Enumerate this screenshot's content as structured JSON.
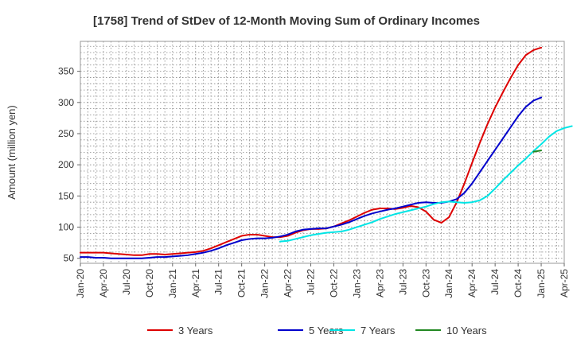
{
  "chart_data": {
    "type": "line",
    "title": "[1758]  Trend of StDev of 12-Month Moving Sum of Ordinary Incomes",
    "xlabel": "",
    "ylabel": "Amount (million yen)",
    "ylim": [
      42,
      398
    ],
    "yticks": [
      50,
      100,
      150,
      200,
      250,
      300,
      350
    ],
    "x_start": "Jan-20",
    "x_months": 63,
    "xticks": [
      {
        "label": "Jan-20",
        "m": 0
      },
      {
        "label": "Apr-20",
        "m": 3
      },
      {
        "label": "Jul-20",
        "m": 6
      },
      {
        "label": "Oct-20",
        "m": 9
      },
      {
        "label": "Jan-21",
        "m": 12
      },
      {
        "label": "Apr-21",
        "m": 15
      },
      {
        "label": "Jul-21",
        "m": 18
      },
      {
        "label": "Oct-21",
        "m": 21
      },
      {
        "label": "Jan-22",
        "m": 24
      },
      {
        "label": "Apr-22",
        "m": 27
      },
      {
        "label": "Jul-22",
        "m": 30
      },
      {
        "label": "Oct-22",
        "m": 33
      },
      {
        "label": "Jan-23",
        "m": 36
      },
      {
        "label": "Apr-23",
        "m": 39
      },
      {
        "label": "Jul-23",
        "m": 42
      },
      {
        "label": "Oct-23",
        "m": 45
      },
      {
        "label": "Jan-24",
        "m": 48
      },
      {
        "label": "Apr-24",
        "m": 51
      },
      {
        "label": "Jul-24",
        "m": 54
      },
      {
        "label": "Oct-24",
        "m": 57
      },
      {
        "label": "Jan-25",
        "m": 60
      },
      {
        "label": "Apr-25",
        "m": 63
      }
    ],
    "series": [
      {
        "name": "3 Years",
        "color": "#dd0000",
        "start": 0,
        "values": [
          59,
          59,
          59,
          59,
          58,
          57,
          56,
          55,
          55,
          57,
          57,
          56,
          57,
          58,
          59,
          60,
          62,
          66,
          71,
          76,
          81,
          86,
          88,
          88,
          86,
          84,
          84,
          86,
          91,
          95,
          97,
          97,
          98,
          101,
          106,
          111,
          117,
          123,
          128,
          130,
          130,
          129,
          131,
          134,
          132,
          125,
          112,
          107,
          116,
          140,
          170,
          203,
          235,
          265,
          292,
          316,
          339,
          360,
          376,
          384,
          388
        ]
      },
      {
        "name": "5 Years",
        "color": "#0000cc",
        "start": 0,
        "values": [
          52,
          52,
          51,
          51,
          50,
          50,
          50,
          50,
          50,
          51,
          52,
          52,
          53,
          54,
          55,
          57,
          59,
          62,
          66,
          71,
          75,
          79,
          81,
          82,
          82,
          83,
          85,
          88,
          93,
          96,
          97,
          98,
          98,
          101,
          104,
          108,
          113,
          118,
          122,
          125,
          128,
          130,
          133,
          136,
          139,
          140,
          139,
          139,
          141,
          145,
          155,
          170,
          188,
          206,
          224,
          242,
          260,
          278,
          293,
          303,
          308
        ]
      },
      {
        "name": "7 Years",
        "color": "#00e5e5",
        "start": 26,
        "values": [
          77,
          78,
          81,
          84,
          87,
          89,
          91,
          92,
          93,
          96,
          100,
          104,
          108,
          113,
          117,
          121,
          124,
          127,
          130,
          133,
          137,
          140,
          141,
          140,
          139,
          140,
          143,
          150,
          162,
          175,
          187,
          199,
          210,
          222,
          233,
          245,
          254,
          259,
          262
        ]
      },
      {
        "name": "10 Years",
        "color": "#228822",
        "start": 59,
        "values": [
          221,
          223
        ]
      }
    ]
  }
}
